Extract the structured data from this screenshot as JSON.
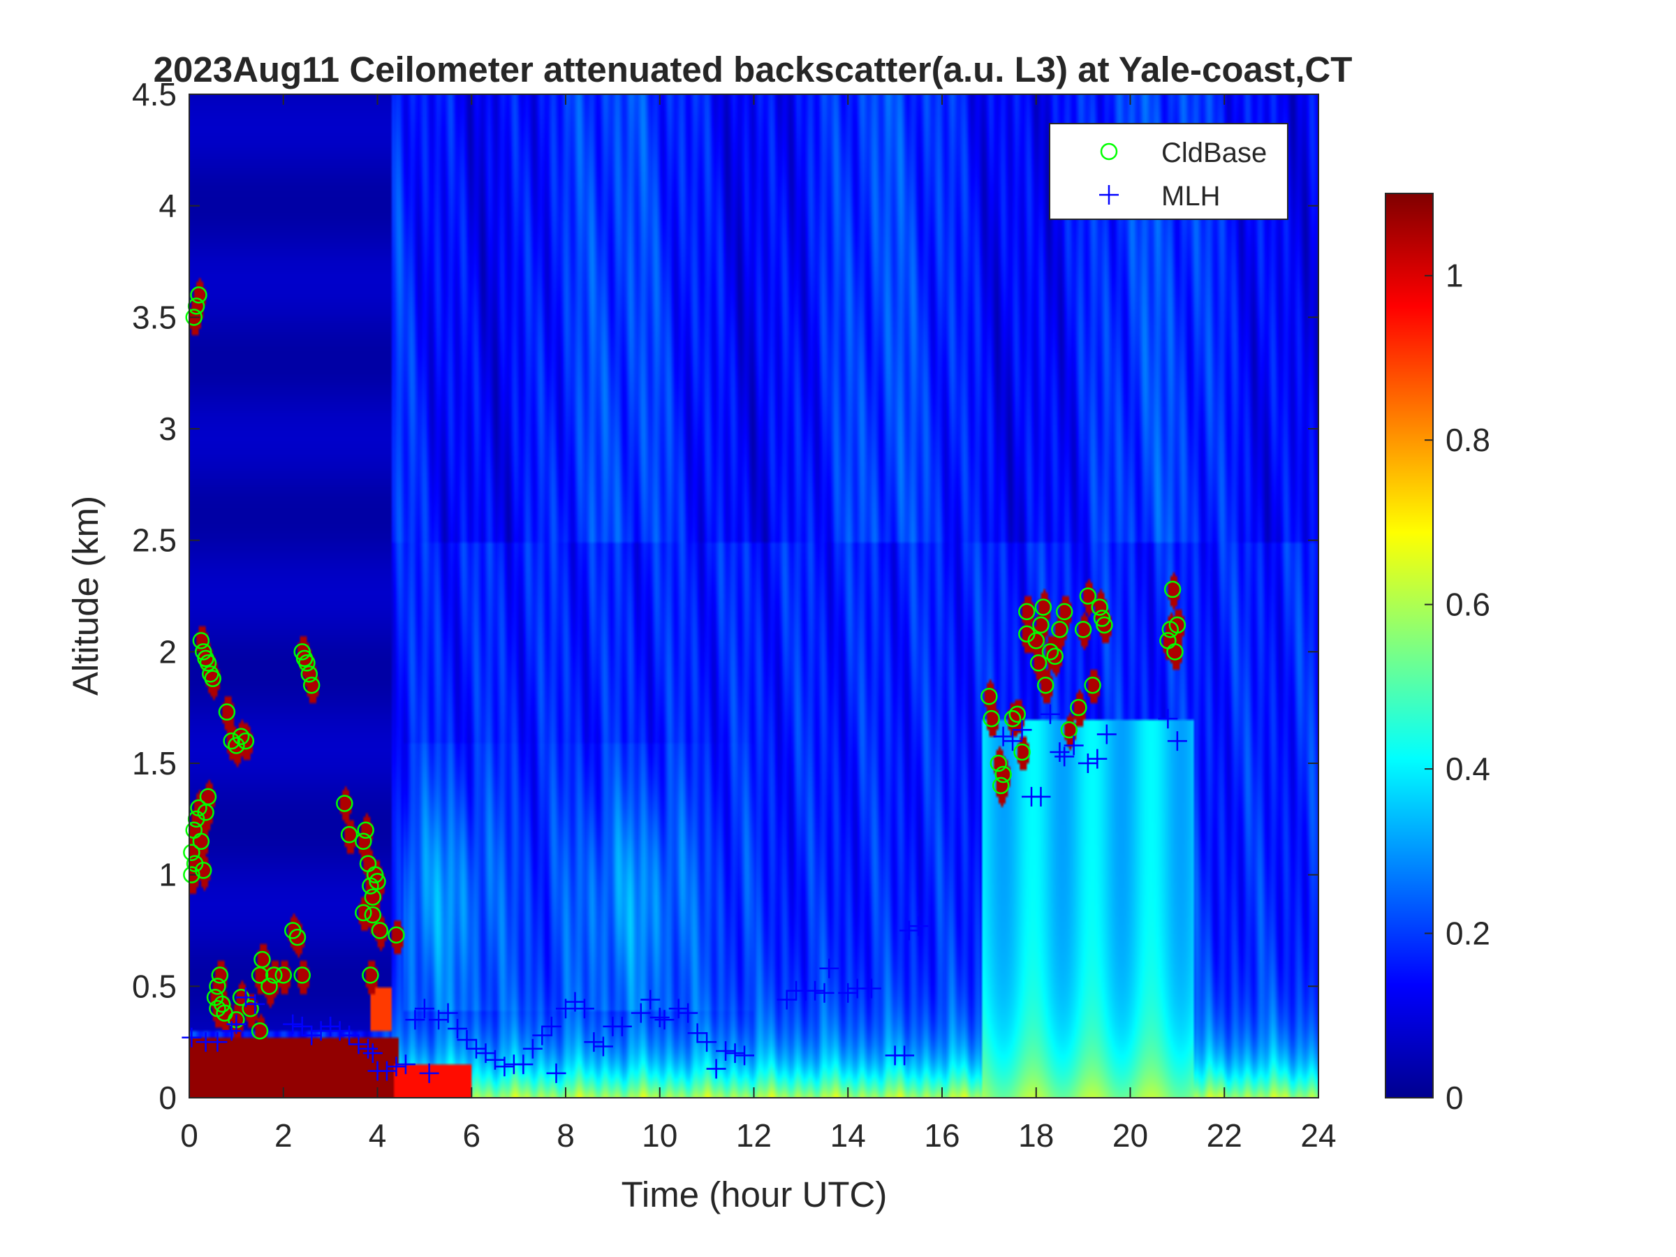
{
  "chart_data": {
    "type": "heatmap",
    "title": "2023Aug11 Ceilometer attenuated backscatter(a.u. L3) at Yale-coast,CT",
    "xlabel": "Time (hour UTC)",
    "ylabel": "Altitude (km)",
    "xlim": [
      0,
      24
    ],
    "ylim": [
      0,
      4.5
    ],
    "xticks": [
      "0",
      "2",
      "4",
      "6",
      "8",
      "10",
      "12",
      "14",
      "16",
      "18",
      "20",
      "22",
      "24"
    ],
    "yticks": [
      "0",
      "0.5",
      "1",
      "1.5",
      "2",
      "2.5",
      "3",
      "3.5",
      "4",
      "4.5"
    ],
    "colorbar": {
      "clim": [
        0,
        1.1
      ],
      "ticks": [
        "0",
        "0.2",
        "0.4",
        "0.6",
        "0.8",
        "1"
      ],
      "colormap": "jet"
    },
    "legend": {
      "placement": "top-right",
      "entries": [
        "CldBase",
        "MLH"
      ]
    },
    "colors": {
      "cldbase": "#00ff00",
      "mlh": "#0000ff"
    },
    "series": [
      {
        "name": "CldBase",
        "marker": "circle",
        "points": [
          [
            0.05,
            1.0
          ],
          [
            0.05,
            1.1
          ],
          [
            0.1,
            1.2
          ],
          [
            0.12,
            1.05
          ],
          [
            0.15,
            1.25
          ],
          [
            0.2,
            1.3
          ],
          [
            0.25,
            1.15
          ],
          [
            0.3,
            1.02
          ],
          [
            0.35,
            1.28
          ],
          [
            0.4,
            1.35
          ],
          [
            0.1,
            3.5
          ],
          [
            0.15,
            3.55
          ],
          [
            0.2,
            3.6
          ],
          [
            0.25,
            2.05
          ],
          [
            0.3,
            2.0
          ],
          [
            0.35,
            1.97
          ],
          [
            0.4,
            1.95
          ],
          [
            0.45,
            1.9
          ],
          [
            0.5,
            1.88
          ],
          [
            0.55,
            0.45
          ],
          [
            0.6,
            0.5
          ],
          [
            0.6,
            0.4
          ],
          [
            0.65,
            0.55
          ],
          [
            0.7,
            0.42
          ],
          [
            0.75,
            0.38
          ],
          [
            0.8,
            1.73
          ],
          [
            0.9,
            1.6
          ],
          [
            1.0,
            1.58
          ],
          [
            1.1,
            1.62
          ],
          [
            1.2,
            1.6
          ],
          [
            1.0,
            0.35
          ],
          [
            1.1,
            0.45
          ],
          [
            1.3,
            0.4
          ],
          [
            1.5,
            0.3
          ],
          [
            1.5,
            0.55
          ],
          [
            1.55,
            0.62
          ],
          [
            1.7,
            0.5
          ],
          [
            1.8,
            0.55
          ],
          [
            2.0,
            0.55
          ],
          [
            2.2,
            0.75
          ],
          [
            2.3,
            0.72
          ],
          [
            2.4,
            2.0
          ],
          [
            2.45,
            1.97
          ],
          [
            2.5,
            1.95
          ],
          [
            2.55,
            1.9
          ],
          [
            2.6,
            1.85
          ],
          [
            2.4,
            0.55
          ],
          [
            3.3,
            1.32
          ],
          [
            3.4,
            1.18
          ],
          [
            3.7,
            1.15
          ],
          [
            3.75,
            1.2
          ],
          [
            3.8,
            1.05
          ],
          [
            3.85,
            0.95
          ],
          [
            3.9,
            0.9
          ],
          [
            3.9,
            0.82
          ],
          [
            3.95,
            1.0
          ],
          [
            4.0,
            0.97
          ],
          [
            4.05,
            0.75
          ],
          [
            3.7,
            0.83
          ],
          [
            3.85,
            0.55
          ],
          [
            4.4,
            0.73
          ],
          [
            17.0,
            1.8
          ],
          [
            17.05,
            1.7
          ],
          [
            17.2,
            1.5
          ],
          [
            17.25,
            1.4
          ],
          [
            17.3,
            1.45
          ],
          [
            17.5,
            1.7
          ],
          [
            17.6,
            1.72
          ],
          [
            17.7,
            1.55
          ],
          [
            17.8,
            2.18
          ],
          [
            17.8,
            2.08
          ],
          [
            18.0,
            2.05
          ],
          [
            18.05,
            1.95
          ],
          [
            18.1,
            2.12
          ],
          [
            18.15,
            2.2
          ],
          [
            18.2,
            1.85
          ],
          [
            18.3,
            2.0
          ],
          [
            18.4,
            1.98
          ],
          [
            18.5,
            2.1
          ],
          [
            18.6,
            2.18
          ],
          [
            18.7,
            1.65
          ],
          [
            18.9,
            1.75
          ],
          [
            19.0,
            2.1
          ],
          [
            19.1,
            2.25
          ],
          [
            19.2,
            1.85
          ],
          [
            19.35,
            2.2
          ],
          [
            19.4,
            2.15
          ],
          [
            19.45,
            2.12
          ],
          [
            20.8,
            2.05
          ],
          [
            20.85,
            2.1
          ],
          [
            20.9,
            2.28
          ],
          [
            20.95,
            2.0
          ],
          [
            21.0,
            2.12
          ]
        ]
      },
      {
        "name": "MLH",
        "marker": "plus",
        "points": [
          [
            0.05,
            0.27
          ],
          [
            0.35,
            0.25
          ],
          [
            0.6,
            0.25
          ],
          [
            0.9,
            0.3
          ],
          [
            1.0,
            0.33
          ],
          [
            1.2,
            0.45
          ],
          [
            1.4,
            0.42
          ],
          [
            2.2,
            0.33
          ],
          [
            2.4,
            0.32
          ],
          [
            2.6,
            0.28
          ],
          [
            2.8,
            0.3
          ],
          [
            3.0,
            0.32
          ],
          [
            3.2,
            0.3
          ],
          [
            3.4,
            0.28
          ],
          [
            3.6,
            0.24
          ],
          [
            3.8,
            0.22
          ],
          [
            3.9,
            0.2
          ],
          [
            4.0,
            0.12
          ],
          [
            4.2,
            0.12
          ],
          [
            4.4,
            0.14
          ],
          [
            4.6,
            0.15
          ],
          [
            4.8,
            0.35
          ],
          [
            5.0,
            0.4
          ],
          [
            5.1,
            0.11
          ],
          [
            5.3,
            0.35
          ],
          [
            5.5,
            0.38
          ],
          [
            5.7,
            0.31
          ],
          [
            5.9,
            0.26
          ],
          [
            6.1,
            0.22
          ],
          [
            6.3,
            0.2
          ],
          [
            6.5,
            0.17
          ],
          [
            6.7,
            0.14
          ],
          [
            6.9,
            0.15
          ],
          [
            7.1,
            0.15
          ],
          [
            7.3,
            0.22
          ],
          [
            7.5,
            0.28
          ],
          [
            7.7,
            0.32
          ],
          [
            7.8,
            0.11
          ],
          [
            8.0,
            0.4
          ],
          [
            8.2,
            0.43
          ],
          [
            8.4,
            0.4
          ],
          [
            8.6,
            0.25
          ],
          [
            8.8,
            0.23
          ],
          [
            9.0,
            0.32
          ],
          [
            9.2,
            0.32
          ],
          [
            9.6,
            0.38
          ],
          [
            9.8,
            0.44
          ],
          [
            10.0,
            0.36
          ],
          [
            10.1,
            0.35
          ],
          [
            10.4,
            0.4
          ],
          [
            10.6,
            0.38
          ],
          [
            10.8,
            0.29
          ],
          [
            11.0,
            0.25
          ],
          [
            11.2,
            0.13
          ],
          [
            11.4,
            0.21
          ],
          [
            11.6,
            0.2
          ],
          [
            11.8,
            0.19
          ],
          [
            12.7,
            0.44
          ],
          [
            12.9,
            0.48
          ],
          [
            13.1,
            0.48
          ],
          [
            13.3,
            0.48
          ],
          [
            13.5,
            0.47
          ],
          [
            13.6,
            0.58
          ],
          [
            14.0,
            0.47
          ],
          [
            14.2,
            0.49
          ],
          [
            14.5,
            0.49
          ],
          [
            15.0,
            0.19
          ],
          [
            15.2,
            0.19
          ],
          [
            15.3,
            0.75
          ],
          [
            15.5,
            0.77
          ],
          [
            17.3,
            1.62
          ],
          [
            17.5,
            1.6
          ],
          [
            17.7,
            1.65
          ],
          [
            17.9,
            1.35
          ],
          [
            18.1,
            1.35
          ],
          [
            18.3,
            1.72
          ],
          [
            18.5,
            1.55
          ],
          [
            18.6,
            1.53
          ],
          [
            18.8,
            1.58
          ],
          [
            19.1,
            1.5
          ],
          [
            19.3,
            1.52
          ],
          [
            19.5,
            1.63
          ],
          [
            20.8,
            1.7
          ],
          [
            21.0,
            1.6
          ]
        ]
      }
    ]
  }
}
